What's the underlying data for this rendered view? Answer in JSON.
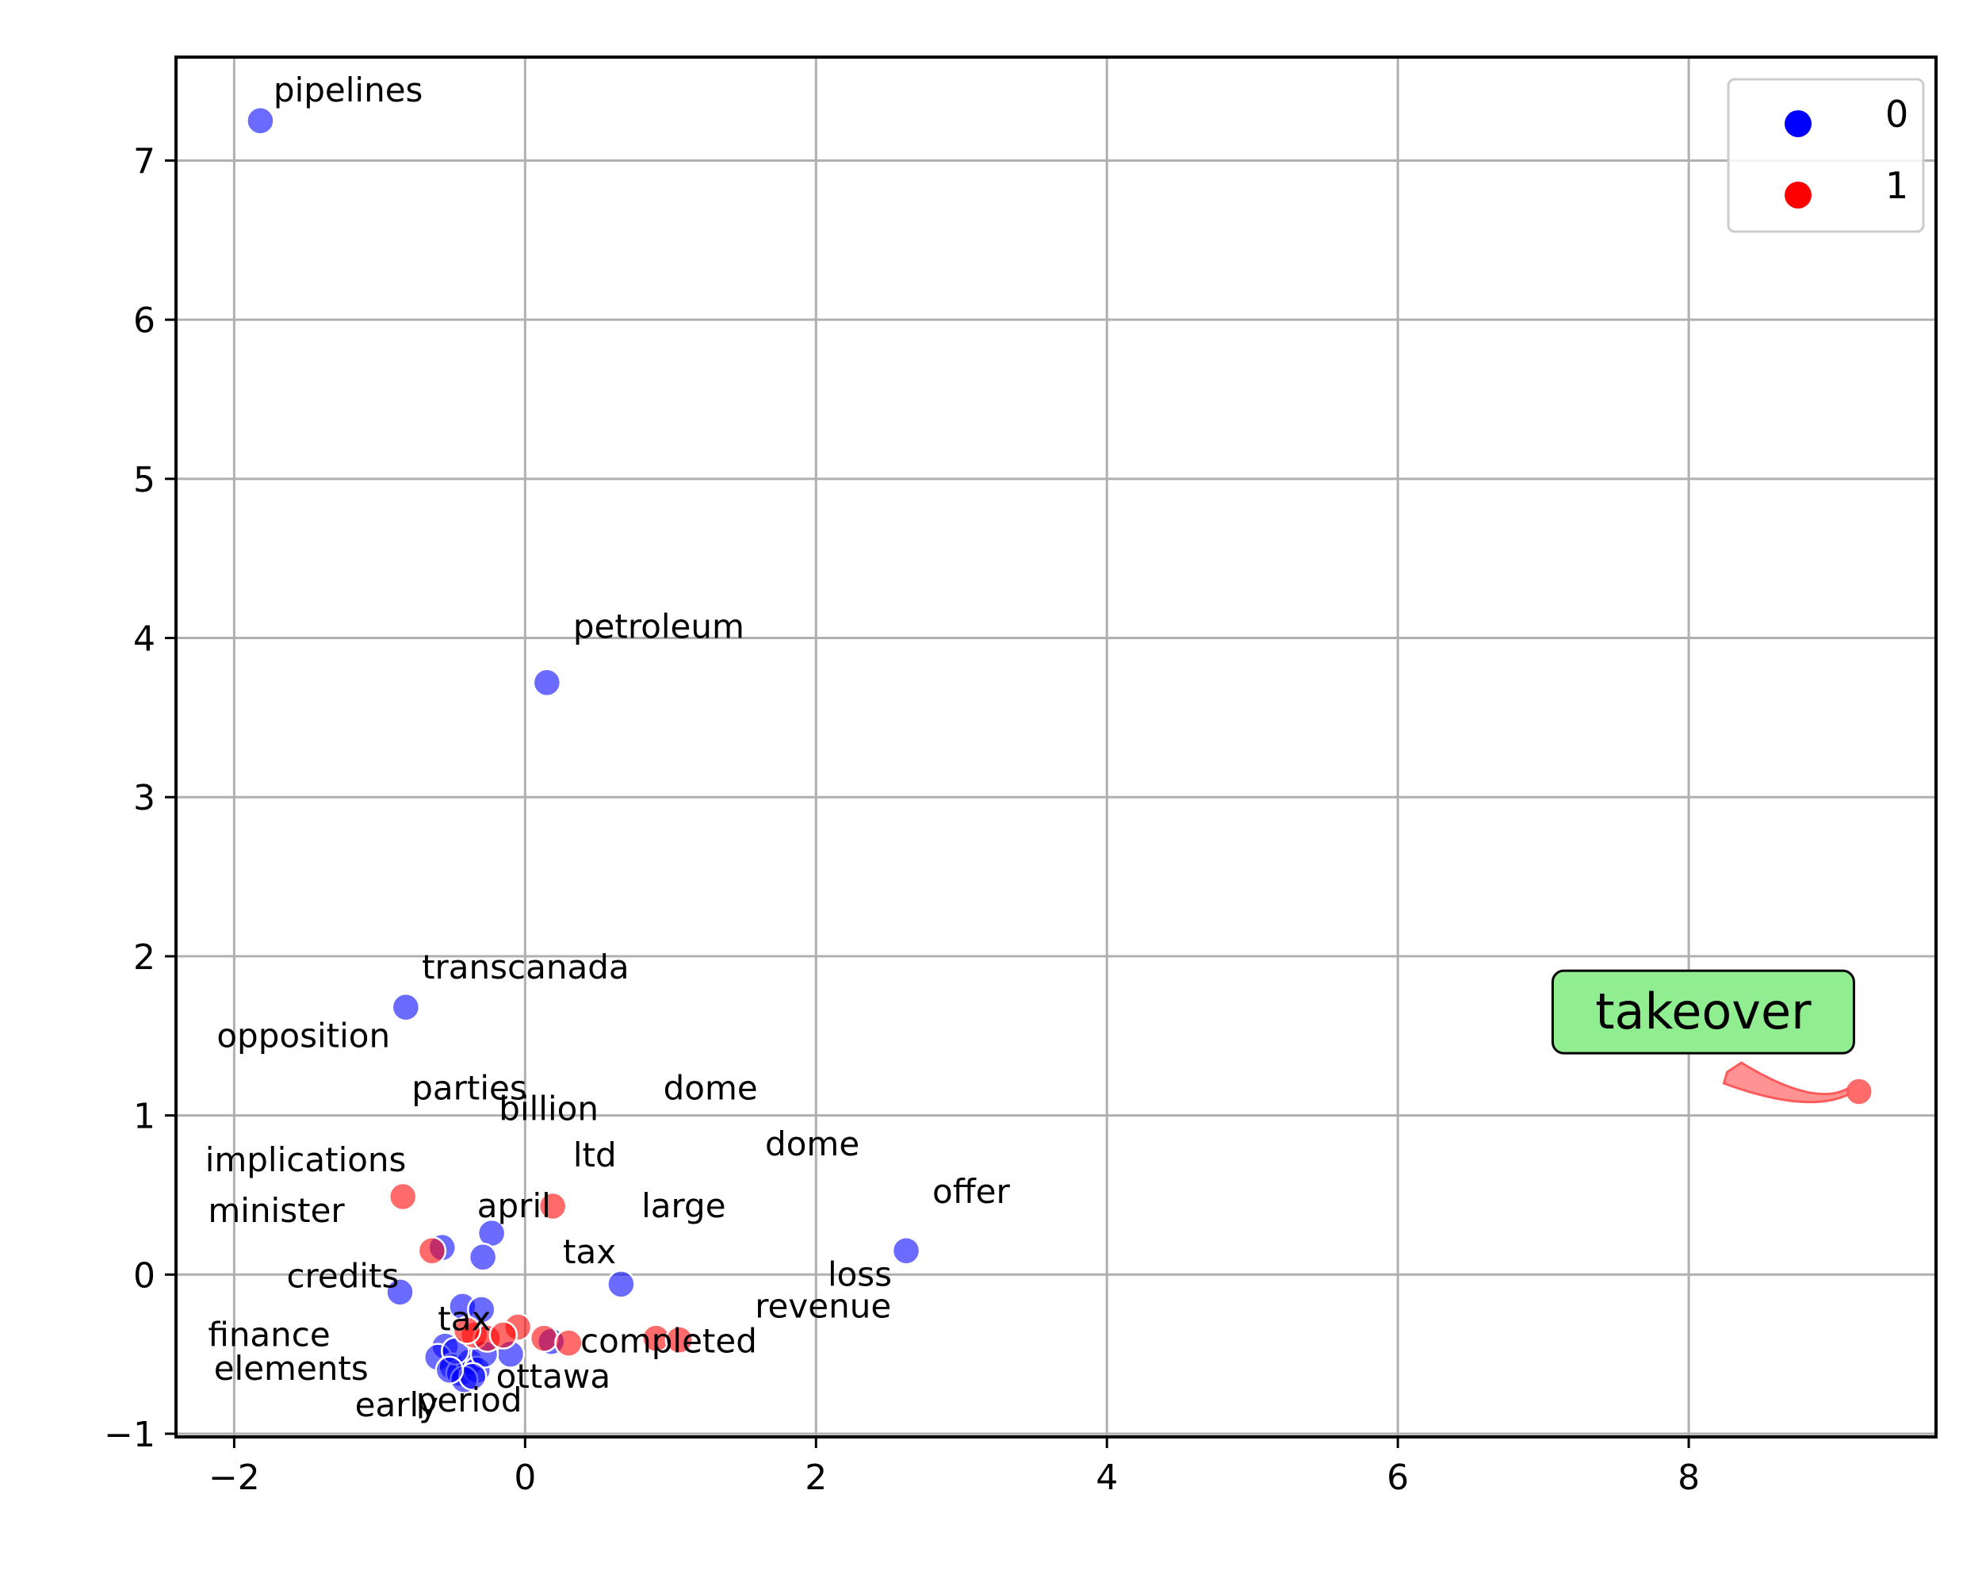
{
  "chart_data": {
    "type": "scatter",
    "title": "",
    "xlabel": "",
    "ylabel": "",
    "xlim": [
      -2.4,
      9.7
    ],
    "ylim": [
      -1.02,
      7.65
    ],
    "xticks": [
      -2,
      0,
      2,
      4,
      6,
      8
    ],
    "yticks": [
      -1,
      0,
      1,
      2,
      3,
      4,
      5,
      6,
      7
    ],
    "xtick_labels": [
      "−2",
      "0",
      "2",
      "4",
      "6",
      "8"
    ],
    "ytick_labels": [
      "−1",
      "0",
      "1",
      "2",
      "3",
      "4",
      "5",
      "6",
      "7"
    ],
    "grid": true,
    "legend_position": "top-right",
    "series": [
      {
        "name": "0",
        "color": "#0000ff",
        "points": [
          [
            -1.82,
            7.25
          ],
          [
            0.15,
            3.72
          ],
          [
            -0.82,
            1.68
          ],
          [
            2.62,
            0.15
          ],
          [
            0.66,
            -0.06
          ],
          [
            -0.23,
            0.26
          ],
          [
            -0.57,
            0.17
          ],
          [
            -0.29,
            0.11
          ],
          [
            -0.86,
            -0.11
          ],
          [
            -0.43,
            -0.2
          ],
          [
            -0.3,
            -0.22
          ],
          [
            -0.1,
            -0.5
          ],
          [
            0.18,
            -0.42
          ],
          [
            -0.55,
            -0.45
          ],
          [
            -0.6,
            -0.52
          ],
          [
            -0.5,
            -0.58
          ],
          [
            -0.45,
            -0.62
          ],
          [
            -0.38,
            -0.55
          ],
          [
            -0.33,
            -0.6
          ],
          [
            -0.42,
            -0.66
          ],
          [
            -0.28,
            -0.5
          ],
          [
            -0.48,
            -0.48
          ],
          [
            -0.36,
            -0.64
          ],
          [
            -0.52,
            -0.6
          ]
        ]
      },
      {
        "name": "1",
        "color": "#ff0000",
        "points": [
          [
            9.17,
            1.15
          ],
          [
            -0.84,
            0.49
          ],
          [
            0.19,
            0.43
          ],
          [
            -0.64,
            0.15
          ],
          [
            -0.05,
            -0.33
          ],
          [
            -0.35,
            -0.38
          ],
          [
            -0.26,
            -0.4
          ],
          [
            -0.4,
            -0.35
          ],
          [
            0.13,
            -0.4
          ],
          [
            0.3,
            -0.43
          ],
          [
            0.9,
            -0.4
          ],
          [
            1.06,
            -0.41
          ],
          [
            -0.15,
            -0.38
          ]
        ]
      }
    ],
    "annotations": [
      {
        "text": "pipelines",
        "x": -1.73,
        "y": 7.37
      },
      {
        "text": "petroleum",
        "x": 0.33,
        "y": 4.0
      },
      {
        "text": "transcanada",
        "x": -0.71,
        "y": 1.86
      },
      {
        "text": "opposition",
        "x": -2.12,
        "y": 1.43
      },
      {
        "text": "parties",
        "x": -0.78,
        "y": 1.1
      },
      {
        "text": "billion",
        "x": -0.18,
        "y": 0.97
      },
      {
        "text": "dome",
        "x": 0.95,
        "y": 1.1
      },
      {
        "text": "ltd",
        "x": 0.33,
        "y": 0.68
      },
      {
        "text": "dome",
        "x": 1.65,
        "y": 0.75
      },
      {
        "text": "implications",
        "x": -2.2,
        "y": 0.65
      },
      {
        "text": "april",
        "x": -0.33,
        "y": 0.36
      },
      {
        "text": "large",
        "x": 0.8,
        "y": 0.36
      },
      {
        "text": "offer",
        "x": 2.8,
        "y": 0.45
      },
      {
        "text": "minister",
        "x": -2.18,
        "y": 0.33
      },
      {
        "text": "tax",
        "x": 0.26,
        "y": 0.07
      },
      {
        "text": "loss",
        "x": 2.08,
        "y": -0.07
      },
      {
        "text": "credits",
        "x": -1.64,
        "y": -0.08
      },
      {
        "text": "revenue",
        "x": 1.58,
        "y": -0.27
      },
      {
        "text": "tax",
        "x": -0.6,
        "y": -0.35
      },
      {
        "text": "finance",
        "x": -2.18,
        "y": -0.45
      },
      {
        "text": "completed",
        "x": 0.38,
        "y": -0.49
      },
      {
        "text": "elements",
        "x": -2.14,
        "y": -0.66
      },
      {
        "text": "ottawa",
        "x": -0.2,
        "y": -0.71
      },
      {
        "text": "period",
        "x": -0.75,
        "y": -0.86
      },
      {
        "text": "early",
        "x": -1.17,
        "y": -0.89
      }
    ],
    "callout": {
      "text": "takeover",
      "box_color": "#90ee90",
      "arrow_color": "#ff7f7f",
      "x": 8.1,
      "y": 1.65
    },
    "legend": [
      {
        "label": "0",
        "color": "#0000ff"
      },
      {
        "label": "1",
        "color": "#ff0000"
      }
    ]
  }
}
